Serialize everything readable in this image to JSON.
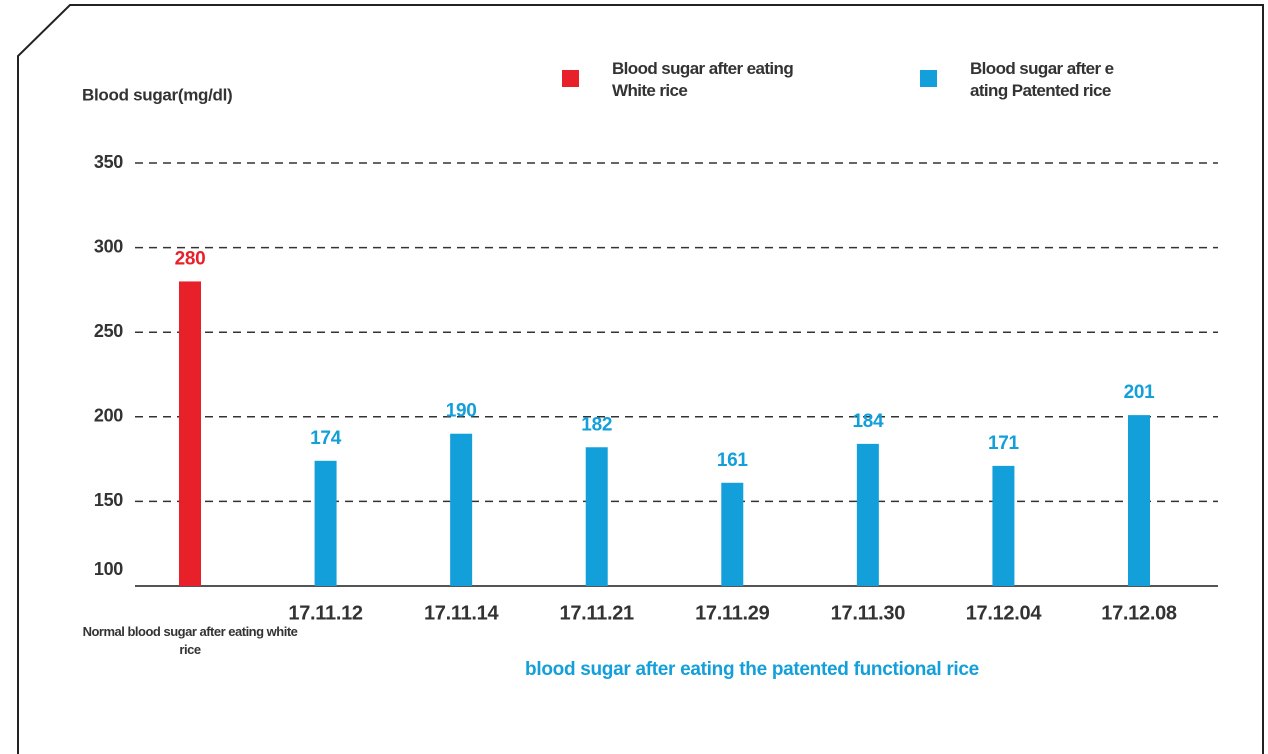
{
  "chart_data": {
    "type": "bar",
    "y_axis_label": "Blood sugar(mg/dl)",
    "x_axis_label": "blood sugar after eating the patented functional rice",
    "categories": [
      "Normal blood sugar after eating white rice",
      "17.11.12",
      "17.11.14",
      "17.11.21",
      "17.11.29",
      "17.11.30",
      "17.12.04",
      "17.12.08"
    ],
    "series": [
      {
        "name": "Blood sugar after eating White rice",
        "color": "#e8202a",
        "values": [
          280,
          null,
          null,
          null,
          null,
          null,
          null,
          null
        ]
      },
      {
        "name": "Blood sugar after e ating Patented rice",
        "color": "#139fda",
        "values": [
          null,
          174,
          190,
          182,
          161,
          184,
          171,
          201
        ]
      }
    ],
    "ylim": [
      100,
      350
    ],
    "yticks": [
      100,
      150,
      200,
      250,
      300,
      350
    ],
    "grid": true
  }
}
